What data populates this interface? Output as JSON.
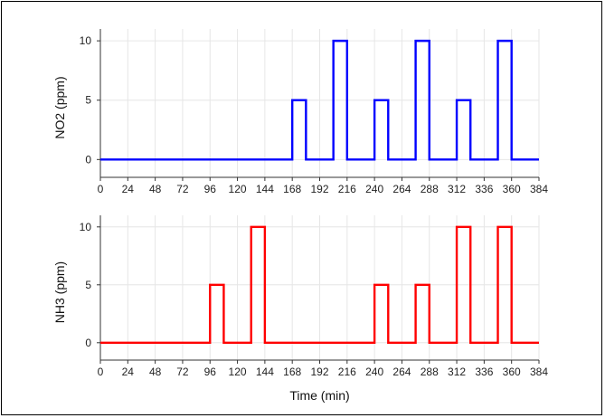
{
  "chart_data": [
    {
      "type": "line",
      "ylabel": "NO2 (ppm)",
      "xlabel": "",
      "xlim": [
        0,
        384
      ],
      "ylim": [
        -1.5,
        11
      ],
      "xticks": [
        0,
        24,
        48,
        72,
        96,
        120,
        144,
        168,
        192,
        216,
        240,
        264,
        288,
        312,
        336,
        360,
        384
      ],
      "yticks": [
        0,
        5,
        10
      ],
      "grid": true,
      "color": "#0000ff",
      "series": [
        {
          "x": [
            0,
            168,
            168,
            180,
            180,
            204,
            204,
            216,
            216,
            240,
            240,
            252,
            252,
            276,
            276,
            288,
            288,
            312,
            312,
            324,
            324,
            348,
            348,
            360,
            360,
            384
          ],
          "y": [
            0,
            0,
            5,
            5,
            0,
            0,
            10,
            10,
            0,
            0,
            5,
            5,
            0,
            0,
            10,
            10,
            0,
            0,
            5,
            5,
            0,
            0,
            10,
            10,
            0,
            0
          ]
        }
      ]
    },
    {
      "type": "line",
      "ylabel": "NH3 (ppm)",
      "xlabel": "Time (min)",
      "xlim": [
        0,
        384
      ],
      "ylim": [
        -1.5,
        11
      ],
      "xticks": [
        0,
        24,
        48,
        72,
        96,
        120,
        144,
        168,
        192,
        216,
        240,
        264,
        288,
        312,
        336,
        360,
        384
      ],
      "yticks": [
        0,
        5,
        10
      ],
      "grid": true,
      "color": "#ff0000",
      "series": [
        {
          "x": [
            0,
            96,
            96,
            108,
            108,
            132,
            132,
            144,
            144,
            240,
            240,
            252,
            252,
            276,
            276,
            288,
            288,
            312,
            312,
            324,
            324,
            348,
            348,
            360,
            360,
            384
          ],
          "y": [
            0,
            0,
            5,
            5,
            0,
            0,
            10,
            10,
            0,
            0,
            5,
            5,
            0,
            0,
            5,
            5,
            0,
            0,
            10,
            10,
            0,
            0,
            10,
            10,
            0,
            0
          ]
        }
      ]
    }
  ]
}
